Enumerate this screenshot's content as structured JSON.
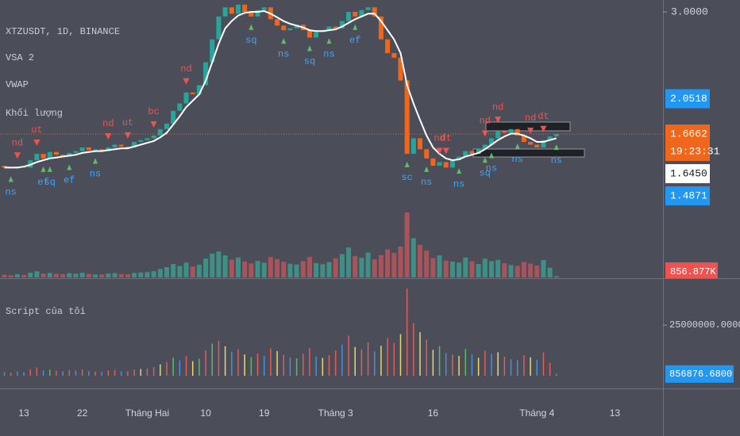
{
  "chart_data": [
    {
      "type": "candlestick",
      "title": "XTZUSDT, 1D, BINANCE",
      "indicators": [
        "VSA 2",
        "VWAP",
        "Khối lượng"
      ],
      "categories": [
        null,
        null,
        null,
        "13",
        null,
        null,
        null,
        null,
        null,
        null,
        null,
        null,
        "22",
        null,
        null,
        null,
        null,
        null,
        null,
        null,
        null,
        null,
        "Tháng Hai",
        null,
        null,
        null,
        null,
        null,
        null,
        null,
        null,
        "10",
        null,
        null,
        null,
        null,
        null,
        null,
        null,
        null,
        "19",
        null,
        null,
        null,
        null,
        null,
        null,
        null,
        null,
        null,
        null,
        "Tháng 3",
        null,
        null,
        null,
        null,
        null,
        null,
        null,
        null,
        null,
        null,
        null,
        null,
        null,
        null,
        "16",
        null,
        null,
        null,
        null,
        null,
        null,
        null,
        null,
        null,
        null,
        null,
        null,
        null,
        null,
        null,
        "Tháng 4",
        null,
        null,
        null,
        null,
        null,
        null,
        null,
        null,
        null,
        null,
        null,
        "13"
      ],
      "open": [
        1.32,
        1.3,
        1.29,
        1.31,
        1.3,
        1.38,
        1.45,
        1.4,
        1.47,
        1.44,
        1.42,
        1.46,
        1.48,
        1.52,
        1.49,
        1.5,
        1.48,
        1.52,
        1.55,
        1.53,
        1.52,
        1.58,
        1.6,
        1.62,
        1.65,
        1.72,
        1.78,
        1.92,
        2.0,
        2.12,
        2.1,
        2.2,
        2.45,
        2.7,
        2.95,
        3.05,
        2.98,
        3.08,
        3.0,
        2.95,
        3.02,
        3.05,
        2.92,
        2.85,
        2.8,
        2.82,
        2.86,
        2.8,
        2.72,
        2.78,
        2.8,
        2.84,
        2.82,
        2.9,
        3.0,
        2.95,
        3.02,
        3.05,
        2.95,
        2.7,
        2.55,
        2.5,
        2.25,
        1.45,
        1.62,
        1.5,
        1.4,
        1.32,
        1.36,
        1.3,
        1.38,
        1.42,
        1.48,
        1.45,
        1.5,
        1.55,
        1.62,
        1.7,
        1.68,
        1.72,
        1.65,
        1.58,
        1.55,
        1.52,
        1.6,
        1.64,
        null,
        null,
        null,
        null,
        null,
        null,
        null,
        null,
        null
      ],
      "close": [
        1.3,
        1.29,
        1.31,
        1.3,
        1.38,
        1.45,
        1.4,
        1.47,
        1.44,
        1.42,
        1.46,
        1.48,
        1.52,
        1.49,
        1.5,
        1.48,
        1.52,
        1.55,
        1.53,
        1.52,
        1.58,
        1.6,
        1.62,
        1.65,
        1.72,
        1.78,
        1.92,
        2.0,
        2.12,
        2.1,
        2.2,
        2.45,
        2.7,
        2.95,
        3.05,
        2.98,
        3.08,
        3.0,
        2.95,
        3.02,
        3.05,
        2.92,
        2.85,
        2.8,
        2.82,
        2.86,
        2.8,
        2.72,
        2.78,
        2.8,
        2.84,
        2.82,
        2.9,
        3.0,
        2.95,
        3.02,
        3.05,
        2.95,
        2.7,
        2.55,
        2.5,
        2.25,
        1.45,
        1.62,
        1.5,
        1.4,
        1.32,
        1.36,
        1.3,
        1.38,
        1.42,
        1.48,
        1.45,
        1.5,
        1.55,
        1.62,
        1.7,
        1.68,
        1.72,
        1.65,
        1.58,
        1.55,
        1.52,
        1.6,
        1.64,
        1.6662,
        null,
        null,
        null,
        null,
        null,
        null,
        null,
        null,
        null
      ],
      "vwap": [
        1.3,
        1.3,
        1.3,
        1.31,
        1.33,
        1.36,
        1.38,
        1.4,
        1.41,
        1.42,
        1.43,
        1.44,
        1.46,
        1.47,
        1.48,
        1.48,
        1.49,
        1.5,
        1.51,
        1.51,
        1.53,
        1.55,
        1.57,
        1.59,
        1.63,
        1.68,
        1.77,
        1.86,
        1.96,
        2.03,
        2.1,
        2.25,
        2.45,
        2.65,
        2.82,
        2.9,
        2.96,
        2.99,
        3.0,
        3.0,
        3.01,
        2.98,
        2.94,
        2.9,
        2.87,
        2.85,
        2.83,
        2.8,
        2.79,
        2.79,
        2.8,
        2.81,
        2.84,
        2.88,
        2.92,
        2.95,
        2.98,
        2.98,
        2.9,
        2.8,
        2.7,
        2.55,
        2.2,
        2.0,
        1.82,
        1.65,
        1.52,
        1.45,
        1.4,
        1.38,
        1.39,
        1.42,
        1.44,
        1.46,
        1.5,
        1.55,
        1.6,
        1.64,
        1.67,
        1.67,
        1.65,
        1.62,
        1.58,
        1.58,
        1.6,
        1.62,
        null,
        null,
        null,
        null,
        null,
        null,
        null,
        null,
        null
      ],
      "up_color": "#26a69a",
      "down_color": "#f0661a",
      "vwap_color": "#ffffff",
      "volume_up_color": "#3e8f86",
      "volume_down_color": "#a8545a",
      "ylim": [
        0.1,
        3.13
      ],
      "yticks": [
        {
          "value": 3,
          "label": "3.0000"
        }
      ],
      "price_labels": [
        {
          "value": 2.0518,
          "label": "2.0518",
          "color": "#2196f3",
          "text_color": "#ffffff"
        },
        {
          "value": 1.6662,
          "label": "1.6662",
          "countdown": "19:23:31",
          "color": "#f0661a",
          "text_color": "#ffffff"
        },
        {
          "value": 1.645,
          "label": "1.6450",
          "color": "#ffffff",
          "text_color": "#131722"
        },
        {
          "value": 1.4871,
          "label": "1.4871",
          "color": "#2196f3",
          "text_color": "#ffffff"
        }
      ],
      "volume_label": {
        "value": 856876.68,
        "label": "856.877K",
        "color": "#ef5350"
      },
      "annotation_colors": {
        "above": "#ef5350",
        "below": "#42a5f5",
        "below_arrow": "#66bb6a"
      },
      "annotations": [
        {
          "index": 2,
          "text": "nd",
          "side": "above"
        },
        {
          "index": 5,
          "text": "ut",
          "side": "above"
        },
        {
          "index": 16,
          "text": "nd",
          "side": "above"
        },
        {
          "index": 19,
          "text": "ut",
          "side": "above"
        },
        {
          "index": 23,
          "text": "bc",
          "side": "above"
        },
        {
          "index": 28,
          "text": "nd",
          "side": "above"
        },
        {
          "index": 67,
          "text": "nd",
          "side": "above"
        },
        {
          "index": 68,
          "text": "dt",
          "side": "above"
        },
        {
          "index": 74,
          "text": "nd",
          "side": "above"
        },
        {
          "index": 76,
          "text": "nd",
          "side": "above"
        },
        {
          "index": 81,
          "text": "nd",
          "side": "above"
        },
        {
          "index": 83,
          "text": "dt",
          "side": "above"
        },
        {
          "index": 1,
          "text": "ns",
          "side": "below"
        },
        {
          "index": 6,
          "text": "ef",
          "side": "below"
        },
        {
          "index": 7,
          "text": "sq",
          "side": "below"
        },
        {
          "index": 10,
          "text": "ef",
          "side": "below"
        },
        {
          "index": 14,
          "text": "ns",
          "side": "below"
        },
        {
          "index": 38,
          "text": "sq",
          "side": "below"
        },
        {
          "index": 43,
          "text": "ns",
          "side": "below"
        },
        {
          "index": 47,
          "text": "sq",
          "side": "below"
        },
        {
          "index": 50,
          "text": "ns",
          "side": "below"
        },
        {
          "index": 54,
          "text": "ef",
          "side": "below"
        },
        {
          "index": 62,
          "text": "sc",
          "side": "below"
        },
        {
          "index": 65,
          "text": "ns",
          "side": "below"
        },
        {
          "index": 70,
          "text": "ns",
          "side": "below"
        },
        {
          "index": 74,
          "text": "sq",
          "side": "below"
        },
        {
          "index": 75,
          "text": "ns",
          "side": "below"
        },
        {
          "index": 79,
          "text": "ns",
          "side": "below"
        },
        {
          "index": 85,
          "text": "ns",
          "side": "below"
        }
      ]
    },
    {
      "type": "bar",
      "title": "Script của tôi",
      "values": [
        1800000,
        1500000,
        2100000,
        1700000,
        3200000,
        4100000,
        2600000,
        3000000,
        2400000,
        2200000,
        2800000,
        2500000,
        3100000,
        2300000,
        2000000,
        1900000,
        2600000,
        2900000,
        2200000,
        2100000,
        3000000,
        3300000,
        3500000,
        4200000,
        5600000,
        6800000,
        8900000,
        7600000,
        9800000,
        7200000,
        8400000,
        12500000,
        15800000,
        17200000,
        14600000,
        11800000,
        13200000,
        10500000,
        9200000,
        11000000,
        9800000,
        13500000,
        12200000,
        10400000,
        9000000,
        8600000,
        10800000,
        13600000,
        9500000,
        8800000,
        10200000,
        12600000,
        15400000,
        19800000,
        14200000,
        13000000,
        16500000,
        12000000,
        14800000,
        18600000,
        16200000,
        20500000,
        43000000,
        26000000,
        21500000,
        17800000,
        12800000,
        14600000,
        11200000,
        10500000,
        9800000,
        13200000,
        10600000,
        8900000,
        12400000,
        10800000,
        11600000,
        9400000,
        8200000,
        7600000,
        10200000,
        9100000,
        7800000,
        11500000,
        6400000,
        856876.68,
        null,
        null,
        null,
        null,
        null,
        null,
        null,
        null,
        null
      ],
      "colors": [
        "#4a8fdc",
        "#e25c5c",
        "#4a8fdc",
        "#4a8fdc",
        "#e25c5c",
        "#e25c5c",
        "#4a8fdc",
        "#5fb86a",
        "#e25c5c",
        "#4a8fdc",
        "#e25c5c",
        "#4a8fdc",
        "#e25c5c",
        "#4a8fdc",
        "#e25c5c",
        "#4a8fdc",
        "#e25c5c",
        "#e25c5c",
        "#4a8fdc",
        "#e25c5c",
        "#e25c5c",
        "#e8d86a",
        "#e25c5c",
        "#e25c5c",
        "#e8d86a",
        "#e25c5c",
        "#5fb86a",
        "#4a8fdc",
        "#e25c5c",
        "#e8d86a",
        "#5fb86a",
        "#e25c5c",
        "#5fb86a",
        "#e25c5c",
        "#e8d86a",
        "#4a8fdc",
        "#e25c5c",
        "#e8d86a",
        "#5fb86a",
        "#e25c5c",
        "#4a8fdc",
        "#e25c5c",
        "#e8d86a",
        "#e25c5c",
        "#4a8fdc",
        "#5fb86a",
        "#e25c5c",
        "#e25c5c",
        "#4a8fdc",
        "#e8d86a",
        "#e25c5c",
        "#e25c5c",
        "#4a8fdc",
        "#e25c5c",
        "#e8d86a",
        "#e25c5c",
        "#e25c5c",
        "#4a8fdc",
        "#e8d86a",
        "#e25c5c",
        "#e25c5c",
        "#e8d86a",
        "#e25c5c",
        "#e25c5c",
        "#e8d86a",
        "#e25c5c",
        "#e8d86a",
        "#5fb86a",
        "#4a8fdc",
        "#e25c5c",
        "#e8d86a",
        "#5fb86a",
        "#4a8fdc",
        "#e8d86a",
        "#e25c5c",
        "#4a8fdc",
        "#e8d86a",
        "#e25c5c",
        "#4a8fdc",
        "#4a8fdc",
        "#e25c5c",
        "#e8d86a",
        "#4a8fdc",
        "#e25c5c",
        "#e25c5c",
        "#5fb86a",
        null,
        null,
        null,
        null,
        null,
        null,
        null,
        null,
        null
      ],
      "ylim": [
        -6250000,
        47700000
      ],
      "yticks": [
        {
          "value": 25000000,
          "label": "25000000.0000"
        }
      ],
      "last_label": {
        "value": 856876.68,
        "label": "856876.6800",
        "color": "#2196f3"
      }
    }
  ]
}
